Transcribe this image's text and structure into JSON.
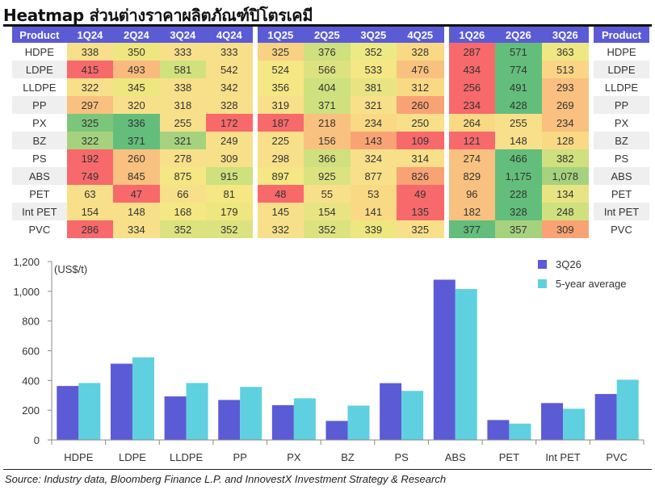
{
  "title": "Heatmap ส่วนต่างราคาผลิตภัณฑ์ปิโตรเคมี",
  "table": {
    "header_left": "Product",
    "header_right": "Product",
    "quarters": [
      "1Q24",
      "2Q24",
      "3Q24",
      "4Q24",
      "1Q25",
      "2Q25",
      "3Q25",
      "4Q25",
      "1Q26",
      "2Q26",
      "3Q26"
    ],
    "rows": [
      {
        "product": "HDPE",
        "values": [
          "338",
          "350",
          "333",
          "333",
          "325",
          "376",
          "352",
          "328",
          "287",
          "571",
          "363"
        ]
      },
      {
        "product": "LDPE",
        "values": [
          "415",
          "493",
          "581",
          "542",
          "524",
          "566",
          "533",
          "476",
          "434",
          "774",
          "513"
        ]
      },
      {
        "product": "LLDPE",
        "values": [
          "322",
          "345",
          "338",
          "342",
          "356",
          "404",
          "381",
          "312",
          "256",
          "491",
          "293"
        ]
      },
      {
        "product": "PP",
        "values": [
          "297",
          "320",
          "318",
          "328",
          "319",
          "371",
          "321",
          "260",
          "234",
          "428",
          "269"
        ]
      },
      {
        "product": "PX",
        "values": [
          "325",
          "336",
          "255",
          "172",
          "187",
          "218",
          "234",
          "250",
          "264",
          "255",
          "234"
        ]
      },
      {
        "product": "BZ",
        "values": [
          "322",
          "371",
          "321",
          "249",
          "225",
          "156",
          "143",
          "109",
          "121",
          "148",
          "128"
        ]
      },
      {
        "product": "PS",
        "values": [
          "192",
          "260",
          "278",
          "309",
          "298",
          "366",
          "324",
          "314",
          "274",
          "466",
          "382"
        ]
      },
      {
        "product": "ABS",
        "values": [
          "749",
          "845",
          "875",
          "915",
          "897",
          "925",
          "877",
          "826",
          "829",
          "1,175",
          "1,078"
        ]
      },
      {
        "product": "PET",
        "values": [
          "63",
          "47",
          "66",
          "81",
          "48",
          "55",
          "53",
          "49",
          "96",
          "228",
          "134"
        ]
      },
      {
        "product": "Int PET",
        "values": [
          "154",
          "148",
          "168",
          "179",
          "145",
          "154",
          "141",
          "135",
          "182",
          "328",
          "248"
        ]
      },
      {
        "product": "PVC",
        "values": [
          "286",
          "334",
          "352",
          "352",
          "332",
          "352",
          "339",
          "325",
          "377",
          "357",
          "309"
        ]
      }
    ],
    "cell_colors": [
      [
        "#f8e08a",
        "#eee67f",
        "#f8e08a",
        "#f8e08a",
        "#f8d184",
        "#cfe07e",
        "#edea85",
        "#fad985",
        "#f8696b",
        "#63be7b",
        "#eee783"
      ],
      [
        "#f8696b",
        "#f9ba7e",
        "#cfe27e",
        "#f8e08a",
        "#f4e784",
        "#dde280",
        "#f4e784",
        "#f9c17f",
        "#f8696b",
        "#63be7b",
        "#fad585"
      ],
      [
        "#f8e08a",
        "#eee67f",
        "#f8e08a",
        "#f8e08a",
        "#f4e784",
        "#cfe07e",
        "#e9e483",
        "#fad985",
        "#f8696b",
        "#63be7b",
        "#f9c07f"
      ],
      [
        "#f9c17f",
        "#f8e08a",
        "#f8e08a",
        "#f8e08a",
        "#f8e08a",
        "#cfe07e",
        "#f8e08a",
        "#f9a375",
        "#f8696b",
        "#63be7b",
        "#f9c07f"
      ],
      [
        "#7cc67c",
        "#63be7b",
        "#f8e08a",
        "#f8696b",
        "#f8696b",
        "#f9c17f",
        "#fad985",
        "#f8e08a",
        "#fad985",
        "#f8e08a",
        "#f9c07f"
      ],
      [
        "#a6d27f",
        "#63be7b",
        "#a6d27f",
        "#f8e08a",
        "#f8e08a",
        "#f9c17f",
        "#f9a375",
        "#f8696b",
        "#f8696b",
        "#f8e08a",
        "#fad985"
      ],
      [
        "#f8696b",
        "#f9c17f",
        "#f8e08a",
        "#f8e08a",
        "#f8e08a",
        "#cfe07e",
        "#f8e08a",
        "#f8e08a",
        "#f9c17f",
        "#63be7b",
        "#cfe07e"
      ],
      [
        "#f8696b",
        "#f9c17f",
        "#f4e784",
        "#cfe07e",
        "#f4e784",
        "#dde280",
        "#f8e08a",
        "#f9a375",
        "#f9c17f",
        "#63be7b",
        "#a6d27f"
      ],
      [
        "#f8e08a",
        "#f8696b",
        "#f8e08a",
        "#f4e784",
        "#f8696b",
        "#f8e08a",
        "#fad985",
        "#f8696b",
        "#f9c17f",
        "#63be7b",
        "#e9e483"
      ],
      [
        "#f8e08a",
        "#f8e08a",
        "#f4e784",
        "#eee67f",
        "#f8e08a",
        "#e9e483",
        "#fad985",
        "#f8696b",
        "#f9c17f",
        "#63be7b",
        "#cfe07e"
      ],
      [
        "#f8696b",
        "#f8e08a",
        "#dde280",
        "#dde280",
        "#f8e08a",
        "#dde280",
        "#eee67f",
        "#f8e08a",
        "#63be7b",
        "#a6d27f",
        "#f9a375"
      ]
    ]
  },
  "chart_data": {
    "type": "bar",
    "categories": [
      "HDPE",
      "LDPE",
      "LLDPE",
      "PP",
      "PX",
      "BZ",
      "PS",
      "ABS",
      "PET",
      "Int PET",
      "PVC"
    ],
    "series": [
      {
        "name": "3Q26",
        "values": [
          363,
          513,
          293,
          269,
          234,
          128,
          382,
          1078,
          134,
          248,
          309
        ]
      },
      {
        "name": "5-year average",
        "values": [
          383,
          556,
          383,
          357,
          280,
          231,
          330,
          1015,
          110,
          210,
          405
        ]
      }
    ],
    "series_colors": [
      "#5b5bd6",
      "#5fd0df"
    ],
    "unit_label": "(US$/t)",
    "ylim": [
      0,
      1200
    ],
    "yticks": [
      "0",
      "200",
      "400",
      "600",
      "800",
      "1,000",
      "1,200"
    ],
    "ytick_values": [
      0,
      200,
      400,
      600,
      800,
      1000,
      1200
    ],
    "legend_position": "top-right",
    "grid": false
  },
  "source": "Source: Industry data, Bloomberg Finance L.P. and InnovestX Investment Strategy & Research"
}
